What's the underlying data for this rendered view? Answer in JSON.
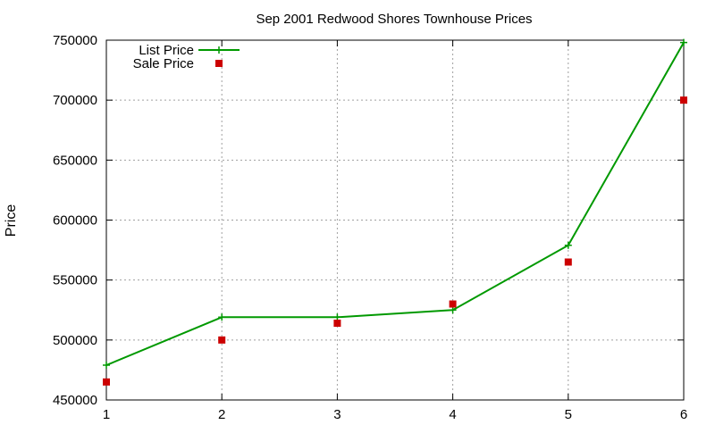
{
  "chart_data": {
    "type": "line",
    "title": "Sep 2001 Redwood Shores Townhouse Prices",
    "xlabel": "",
    "ylabel": "Price",
    "x": [
      1,
      2,
      3,
      4,
      5,
      6
    ],
    "xlim": [
      1,
      6
    ],
    "ylim": [
      450000,
      750000
    ],
    "xticks": [
      "1",
      "2",
      "3",
      "4",
      "5",
      "6"
    ],
    "yticks": [
      "450000",
      "500000",
      "550000",
      "600000",
      "650000",
      "700000",
      "750000"
    ],
    "grid": true,
    "legend_position": "top-left",
    "series": [
      {
        "name": "List Price",
        "style": "line+points",
        "marker": "plus",
        "color": "#009900",
        "values": [
          479000,
          519000,
          519000,
          525000,
          579000,
          748000
        ]
      },
      {
        "name": "Sale Price",
        "style": "points",
        "marker": "square",
        "color": "#cc0000",
        "values": [
          465000,
          500000,
          514000,
          530000,
          565000,
          700000
        ]
      }
    ]
  }
}
